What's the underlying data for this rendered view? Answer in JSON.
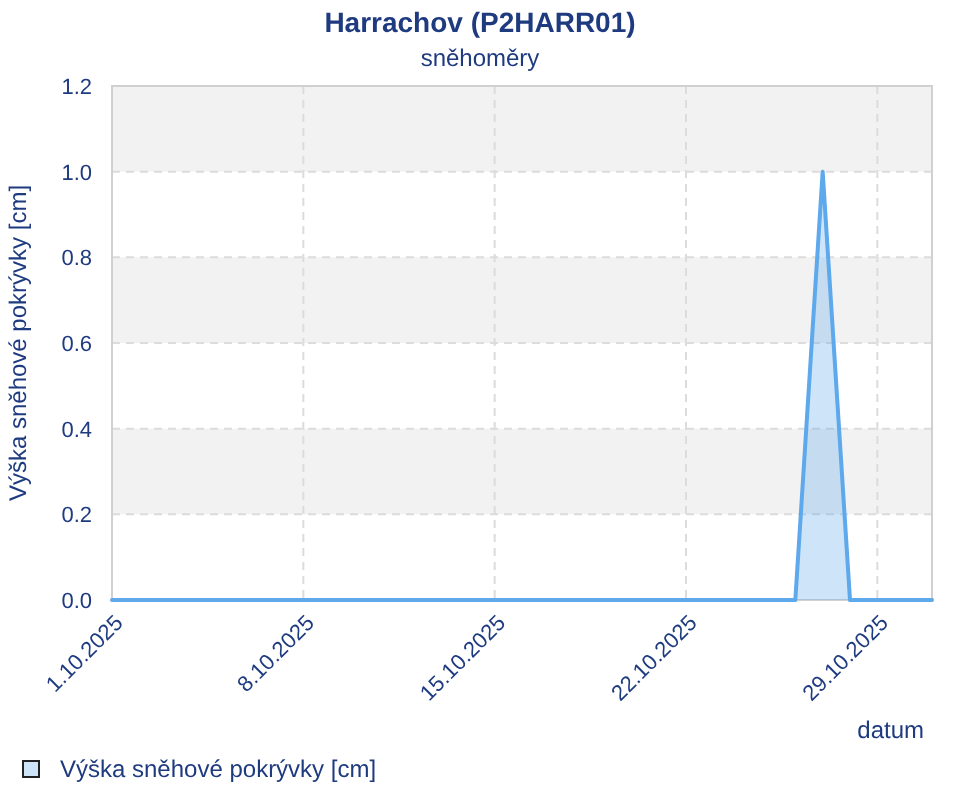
{
  "chart_data": {
    "type": "area",
    "title": "Harrachov (P2HARR01)",
    "subtitle": "sněhoměry",
    "xlabel": "datum",
    "ylabel": "Výška sněhové pokrývky [cm]",
    "x": [
      "2025-10-01",
      "2025-10-02",
      "2025-10-03",
      "2025-10-04",
      "2025-10-05",
      "2025-10-06",
      "2025-10-07",
      "2025-10-08",
      "2025-10-09",
      "2025-10-10",
      "2025-10-11",
      "2025-10-12",
      "2025-10-13",
      "2025-10-14",
      "2025-10-15",
      "2025-10-16",
      "2025-10-17",
      "2025-10-18",
      "2025-10-19",
      "2025-10-20",
      "2025-10-21",
      "2025-10-22",
      "2025-10-23",
      "2025-10-24",
      "2025-10-25",
      "2025-10-26",
      "2025-10-27",
      "2025-10-28",
      "2025-10-29",
      "2025-10-30",
      "2025-10-31"
    ],
    "series": [
      {
        "name": "Výška sněhové pokrývky [cm]",
        "color": "#5ea8ec",
        "values": [
          0,
          0,
          0,
          0,
          0,
          0,
          0,
          0,
          0,
          0,
          0,
          0,
          0,
          0,
          0,
          0,
          0,
          0,
          0,
          0,
          0,
          0,
          0,
          0,
          0,
          0,
          1.0,
          0,
          0,
          0,
          0
        ]
      }
    ],
    "xlim": [
      "2025-10-01",
      "2025-10-31"
    ],
    "xticks": [
      {
        "value": "2025-10-01",
        "label": "1.10.2025"
      },
      {
        "value": "2025-10-08",
        "label": "8.10.2025"
      },
      {
        "value": "2025-10-15",
        "label": "15.10.2025"
      },
      {
        "value": "2025-10-22",
        "label": "22.10.2025"
      },
      {
        "value": "2025-10-29",
        "label": "29.10.2025"
      }
    ],
    "ylim": [
      0,
      1.2
    ],
    "yticks": [
      {
        "value": 0,
        "label": "0.0"
      },
      0.2,
      0.4,
      0.6,
      0.8,
      {
        "value": 1,
        "label": "1.0"
      },
      1.2
    ],
    "grid": true,
    "legend": "bottom left"
  }
}
